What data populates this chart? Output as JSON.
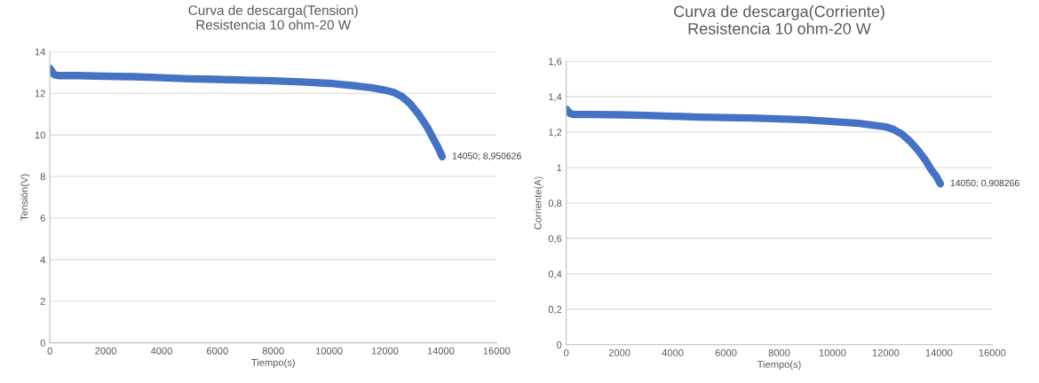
{
  "chart_data": [
    {
      "type": "line",
      "title": "Curva de descarga(Tension)\nResistencia 10 ohm-20 W",
      "xlabel": "Tiempo(s)",
      "ylabel": "Tensión(V)",
      "x": [
        0,
        50,
        150,
        300,
        1000,
        2000,
        3000,
        4000,
        5000,
        6000,
        7000,
        8000,
        9000,
        10000,
        11000,
        11500,
        12000,
        12300,
        12600,
        12900,
        13200,
        13500,
        13700,
        13900,
        14050
      ],
      "series": [
        {
          "color": "#4472c4",
          "values": [
            13.2,
            13.1,
            12.9,
            12.85,
            12.85,
            12.82,
            12.8,
            12.75,
            12.7,
            12.67,
            12.63,
            12.6,
            12.55,
            12.48,
            12.35,
            12.27,
            12.15,
            12.05,
            11.85,
            11.5,
            11.0,
            10.4,
            9.9,
            9.4,
            8.950626
          ]
        }
      ],
      "xlim": [
        0,
        16000
      ],
      "xticks": [
        0,
        2000,
        4000,
        6000,
        8000,
        10000,
        12000,
        14000,
        16000
      ],
      "ylim": [
        0,
        14
      ],
      "yticks": [
        0,
        2,
        4,
        6,
        8,
        10,
        12,
        14
      ],
      "grid": "y",
      "annotations": [
        {
          "text": "14050; 8,950626",
          "x": 14050,
          "y": 8.950626
        }
      ]
    },
    {
      "type": "line",
      "title": "Curva de descarga(Corriente)\nResistencia 10 ohm-20 W",
      "xlabel": "Tiempo(s)",
      "ylabel": "Corriente(A)",
      "x": [
        0,
        50,
        150,
        300,
        1000,
        2000,
        3000,
        4000,
        5000,
        6000,
        7000,
        8000,
        9000,
        10000,
        11000,
        11500,
        12000,
        12300,
        12600,
        12900,
        13200,
        13500,
        13700,
        13900,
        14050
      ],
      "series": [
        {
          "color": "#4472c4",
          "values": [
            1.33,
            1.32,
            1.305,
            1.3,
            1.3,
            1.298,
            1.295,
            1.29,
            1.285,
            1.282,
            1.28,
            1.275,
            1.27,
            1.26,
            1.25,
            1.24,
            1.23,
            1.215,
            1.19,
            1.15,
            1.1,
            1.04,
            0.99,
            0.95,
            0.908266
          ]
        }
      ],
      "xlim": [
        0,
        16000
      ],
      "xticks": [
        0,
        2000,
        4000,
        6000,
        8000,
        10000,
        12000,
        14000,
        16000
      ],
      "ylim": [
        0,
        1.6
      ],
      "yticks": [
        0,
        {
          "value": 0.2,
          "label": "0,2"
        },
        {
          "value": 0.4,
          "label": "0,4"
        },
        {
          "value": 0.6,
          "label": "0,6"
        },
        {
          "value": 0.8,
          "label": "0,8"
        },
        1,
        {
          "value": 1.2,
          "label": "1,2"
        },
        {
          "value": 1.4,
          "label": "1,4"
        },
        {
          "value": 1.6,
          "label": "1,6"
        }
      ],
      "grid": "y",
      "annotations": [
        {
          "text": "14050; 0,908266",
          "x": 14050,
          "y": 0.908266
        }
      ]
    }
  ]
}
